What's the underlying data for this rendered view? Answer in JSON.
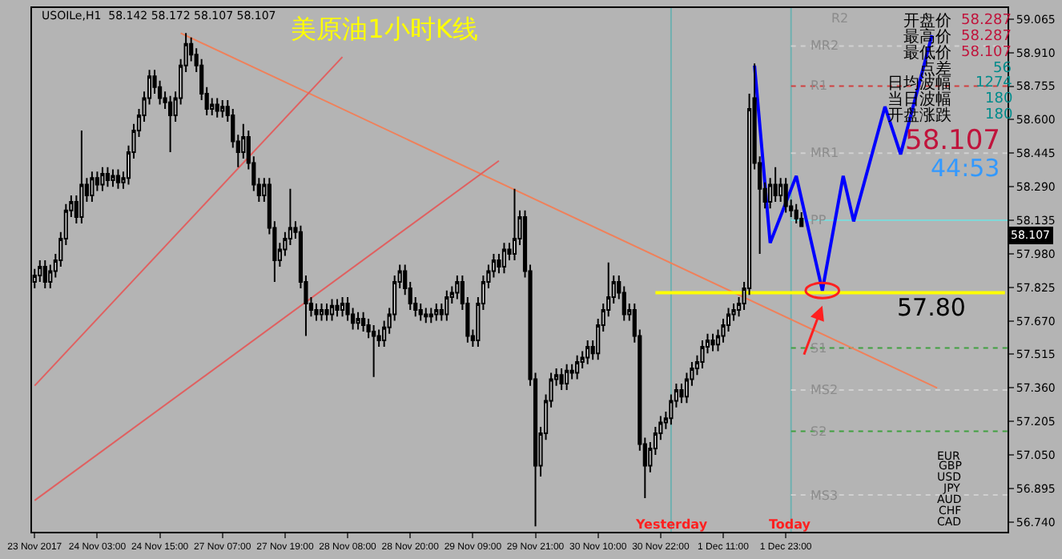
{
  "chart_data": {
    "type": "candlestick",
    "title": "美原油1小时K线",
    "categories": [
      "23 Nov 2017",
      null,
      null,
      null,
      null,
      null,
      null,
      null,
      null,
      null,
      null,
      null,
      "24 Nov 03:00",
      null,
      null,
      null,
      null,
      null,
      null,
      null,
      null,
      null,
      null,
      null,
      "24 Nov 15:00",
      null,
      null,
      null,
      null,
      null,
      null,
      null,
      null,
      null,
      null,
      null,
      "27 Nov 07:00",
      null,
      null,
      null,
      null,
      null,
      null,
      null,
      null,
      null,
      null,
      null,
      "27 Nov 19:00",
      null,
      null,
      null,
      null,
      null,
      null,
      null,
      null,
      null,
      null,
      null,
      "28 Nov 08:00",
      null,
      null,
      null,
      null,
      null,
      null,
      null,
      null,
      null,
      null,
      null,
      "28 Nov 20:00",
      null,
      null,
      null,
      null,
      null,
      null,
      null,
      null,
      null,
      null,
      null,
      "29 Nov 09:00",
      null,
      null,
      null,
      null,
      null,
      null,
      null,
      null,
      null,
      null,
      null,
      "29 Nov 21:00",
      null,
      null,
      null,
      null,
      null,
      null,
      null,
      null,
      null,
      null,
      null,
      "30 Nov 10:00",
      null,
      null,
      null,
      null,
      null,
      null,
      null,
      null,
      null,
      null,
      null,
      "30 Nov 22:00",
      null,
      null,
      null,
      null,
      null,
      null,
      null,
      null,
      null,
      null,
      null,
      "1 Dec 11:00",
      null,
      null,
      null,
      null,
      null,
      null,
      null,
      null,
      null,
      null,
      null,
      "1 Dec 23:00",
      null,
      null,
      null,
      null,
      null,
      null,
      null,
      null,
      null,
      null,
      null,
      null,
      null,
      null,
      null,
      null,
      null,
      null,
      null,
      null,
      null,
      null,
      null,
      null,
      null,
      null,
      null,
      null,
      null,
      null,
      null,
      null,
      null,
      null,
      null,
      null,
      null,
      null,
      null,
      null,
      null,
      null
    ],
    "ohlc": [
      [
        57.85,
        57.91,
        57.82,
        57.88
      ],
      [
        57.88,
        57.95,
        57.85,
        57.92
      ],
      [
        57.92,
        57.95,
        57.82,
        57.85
      ],
      [
        57.85,
        57.93,
        57.82,
        57.9
      ],
      [
        57.9,
        57.98,
        57.87,
        57.95
      ],
      [
        57.95,
        58.08,
        57.92,
        58.05
      ],
      [
        58.05,
        58.21,
        58.02,
        58.18
      ],
      [
        58.18,
        58.25,
        58.15,
        58.22
      ],
      [
        58.22,
        58.25,
        58.12,
        58.15
      ],
      [
        58.15,
        58.55,
        58.12,
        58.3
      ],
      [
        58.3,
        58.33,
        58.22,
        58.25
      ],
      [
        58.25,
        58.36,
        58.22,
        58.33
      ],
      [
        58.33,
        58.36,
        58.27,
        58.3
      ],
      [
        58.3,
        58.38,
        58.27,
        58.35
      ],
      [
        58.35,
        58.38,
        58.29,
        58.32
      ],
      [
        58.32,
        58.37,
        58.29,
        58.34
      ],
      [
        58.34,
        58.37,
        58.28,
        58.31
      ],
      [
        58.31,
        58.36,
        58.28,
        58.33
      ],
      [
        58.33,
        58.48,
        58.3,
        58.45
      ],
      [
        58.45,
        58.58,
        58.42,
        58.55
      ],
      [
        58.55,
        58.65,
        58.52,
        58.62
      ],
      [
        58.62,
        58.73,
        58.59,
        58.7
      ],
      [
        58.7,
        58.83,
        58.67,
        58.8
      ],
      [
        58.8,
        58.83,
        58.72,
        58.75
      ],
      [
        58.75,
        58.78,
        58.67,
        58.7
      ],
      [
        58.7,
        58.73,
        58.65,
        58.68
      ],
      [
        58.68,
        58.71,
        58.45,
        58.62
      ],
      [
        58.62,
        58.73,
        58.59,
        58.7
      ],
      [
        58.7,
        58.88,
        58.67,
        58.85
      ],
      [
        58.85,
        59.0,
        58.82,
        58.95
      ],
      [
        58.95,
        58.98,
        58.87,
        58.9
      ],
      [
        58.9,
        58.93,
        58.82,
        58.85
      ],
      [
        58.85,
        58.88,
        58.69,
        58.72
      ],
      [
        58.72,
        58.75,
        58.62,
        58.65
      ],
      [
        58.65,
        58.7,
        58.62,
        58.67
      ],
      [
        58.67,
        58.7,
        58.61,
        58.64
      ],
      [
        58.64,
        58.69,
        58.61,
        58.66
      ],
      [
        58.66,
        58.69,
        58.59,
        58.62
      ],
      [
        58.62,
        58.65,
        58.47,
        58.5
      ],
      [
        58.5,
        58.53,
        58.38,
        58.45
      ],
      [
        58.45,
        58.58,
        58.42,
        58.52
      ],
      [
        58.52,
        58.55,
        58.37,
        58.4
      ],
      [
        58.4,
        58.43,
        58.27,
        58.3
      ],
      [
        58.3,
        58.33,
        58.22,
        58.25
      ],
      [
        58.25,
        58.33,
        58.22,
        58.3
      ],
      [
        58.3,
        58.33,
        58.07,
        58.1
      ],
      [
        58.1,
        58.13,
        57.85,
        57.95
      ],
      [
        57.95,
        58.03,
        57.92,
        58.0
      ],
      [
        58.0,
        58.08,
        57.97,
        58.05
      ],
      [
        58.05,
        58.28,
        58.02,
        58.1
      ],
      [
        58.1,
        58.13,
        58.05,
        58.08
      ],
      [
        58.08,
        58.11,
        57.82,
        57.85
      ],
      [
        57.85,
        57.88,
        57.6,
        57.75
      ],
      [
        57.75,
        57.78,
        57.69,
        57.72
      ],
      [
        57.72,
        57.75,
        57.67,
        57.7
      ],
      [
        57.7,
        57.75,
        57.67,
        57.72
      ],
      [
        57.72,
        57.75,
        57.67,
        57.7
      ],
      [
        57.7,
        57.77,
        57.67,
        57.74
      ],
      [
        57.74,
        57.77,
        57.69,
        57.72
      ],
      [
        57.72,
        57.78,
        57.69,
        57.75
      ],
      [
        57.75,
        57.78,
        57.67,
        57.7
      ],
      [
        57.7,
        57.73,
        57.63,
        57.66
      ],
      [
        57.66,
        57.71,
        57.63,
        57.68
      ],
      [
        57.68,
        57.71,
        57.62,
        57.65
      ],
      [
        57.65,
        57.68,
        57.59,
        57.62
      ],
      [
        57.62,
        57.65,
        57.41,
        57.6
      ],
      [
        57.6,
        57.63,
        57.55,
        57.58
      ],
      [
        57.58,
        57.67,
        57.55,
        57.64
      ],
      [
        57.64,
        57.73,
        57.61,
        57.7
      ],
      [
        57.7,
        57.88,
        57.67,
        57.85
      ],
      [
        57.85,
        57.93,
        57.82,
        57.9
      ],
      [
        57.9,
        57.93,
        57.79,
        57.82
      ],
      [
        57.82,
        57.85,
        57.72,
        57.75
      ],
      [
        57.75,
        57.78,
        57.69,
        57.72
      ],
      [
        57.72,
        57.75,
        57.67,
        57.7
      ],
      [
        57.7,
        57.73,
        57.66,
        57.69
      ],
      [
        57.69,
        57.73,
        57.66,
        57.7
      ],
      [
        57.7,
        57.75,
        57.67,
        57.72
      ],
      [
        57.72,
        57.75,
        57.67,
        57.7
      ],
      [
        57.7,
        57.81,
        57.67,
        57.78
      ],
      [
        57.78,
        57.83,
        57.75,
        57.8
      ],
      [
        57.8,
        57.88,
        57.77,
        57.85
      ],
      [
        57.85,
        57.88,
        57.72,
        57.75
      ],
      [
        57.75,
        57.78,
        57.57,
        57.6
      ],
      [
        57.6,
        57.63,
        57.55,
        57.58
      ],
      [
        57.58,
        57.78,
        57.55,
        57.75
      ],
      [
        57.75,
        57.88,
        57.72,
        57.85
      ],
      [
        57.85,
        57.93,
        57.82,
        57.9
      ],
      [
        57.9,
        57.98,
        57.87,
        57.95
      ],
      [
        57.95,
        57.98,
        57.89,
        57.92
      ],
      [
        57.92,
        58.03,
        57.89,
        58.0
      ],
      [
        58.0,
        58.03,
        57.95,
        57.98
      ],
      [
        57.98,
        58.28,
        57.95,
        58.05
      ],
      [
        58.05,
        58.18,
        58.02,
        58.15
      ],
      [
        58.15,
        58.18,
        57.87,
        57.9
      ],
      [
        57.9,
        57.93,
        57.37,
        57.4
      ],
      [
        57.4,
        57.43,
        56.72,
        57.0
      ],
      [
        57.0,
        57.18,
        56.95,
        57.15
      ],
      [
        57.15,
        57.33,
        57.12,
        57.3
      ],
      [
        57.3,
        57.43,
        57.27,
        57.4
      ],
      [
        57.4,
        57.45,
        57.37,
        57.42
      ],
      [
        57.42,
        57.45,
        57.35,
        57.38
      ],
      [
        57.38,
        57.47,
        57.35,
        57.44
      ],
      [
        57.44,
        57.47,
        57.4,
        57.43
      ],
      [
        57.43,
        57.51,
        57.4,
        57.48
      ],
      [
        57.48,
        57.53,
        57.45,
        57.5
      ],
      [
        57.5,
        57.58,
        57.47,
        57.55
      ],
      [
        57.55,
        57.58,
        57.49,
        57.52
      ],
      [
        57.52,
        57.68,
        57.49,
        57.65
      ],
      [
        57.65,
        57.75,
        57.62,
        57.72
      ],
      [
        57.72,
        57.94,
        57.69,
        57.78
      ],
      [
        57.78,
        57.88,
        57.75,
        57.85
      ],
      [
        57.85,
        57.88,
        57.77,
        57.8
      ],
      [
        57.8,
        57.83,
        57.67,
        57.7
      ],
      [
        57.7,
        57.75,
        57.67,
        57.72
      ],
      [
        57.72,
        57.75,
        57.57,
        57.6
      ],
      [
        57.6,
        57.63,
        57.07,
        57.1
      ],
      [
        57.1,
        57.13,
        56.85,
        57.0
      ],
      [
        57.0,
        57.11,
        56.97,
        57.08
      ],
      [
        57.08,
        57.18,
        57.05,
        57.15
      ],
      [
        57.15,
        57.23,
        57.12,
        57.2
      ],
      [
        57.2,
        57.25,
        57.17,
        57.22
      ],
      [
        57.22,
        57.33,
        57.19,
        57.3
      ],
      [
        57.3,
        57.38,
        57.27,
        57.35
      ],
      [
        57.35,
        57.38,
        57.29,
        57.32
      ],
      [
        57.32,
        57.43,
        57.29,
        57.4
      ],
      [
        57.4,
        57.48,
        57.37,
        57.45
      ],
      [
        57.45,
        57.51,
        57.42,
        57.48
      ],
      [
        57.48,
        57.58,
        57.45,
        57.55
      ],
      [
        57.55,
        57.61,
        57.52,
        57.58
      ],
      [
        57.58,
        57.61,
        57.53,
        57.56
      ],
      [
        57.56,
        57.63,
        57.53,
        57.6
      ],
      [
        57.6,
        57.68,
        57.57,
        57.65
      ],
      [
        57.65,
        57.73,
        57.62,
        57.7
      ],
      [
        57.7,
        57.75,
        57.67,
        57.72
      ],
      [
        57.72,
        57.78,
        57.69,
        57.75
      ],
      [
        57.75,
        57.85,
        57.72,
        57.82
      ],
      [
        57.82,
        58.72,
        57.79,
        58.65
      ],
      [
        58.7,
        58.86,
        58.37,
        58.4
      ],
      [
        58.4,
        58.43,
        57.98,
        58.28
      ],
      [
        58.28,
        58.31,
        58.19,
        58.22
      ],
      [
        58.22,
        58.33,
        58.19,
        58.3
      ],
      [
        58.3,
        58.38,
        58.22,
        58.25
      ],
      [
        58.25,
        58.33,
        58.22,
        58.3
      ],
      [
        58.3,
        58.33,
        58.17,
        58.2
      ],
      [
        58.2,
        58.23,
        58.15,
        58.18
      ],
      [
        58.18,
        58.21,
        58.12,
        58.142
      ],
      [
        58.142,
        58.172,
        58.107,
        58.107
      ],
      null,
      null,
      null,
      null,
      null,
      null,
      null,
      null,
      null,
      null,
      null,
      null,
      null,
      null,
      null,
      null,
      null,
      null,
      null,
      null,
      null,
      null,
      null,
      null,
      null,
      null,
      null,
      null,
      null,
      null,
      null,
      null,
      null,
      null,
      null,
      null,
      null,
      null,
      null
    ],
    "series": [
      {
        "type": "line",
        "color": "#f0805a",
        "values": [
          null,
          null,
          null,
          null,
          null,
          null,
          null,
          null,
          null,
          null,
          null,
          null,
          null,
          null,
          null,
          null,
          null,
          null,
          null,
          null,
          null,
          null,
          null,
          null,
          null,
          null,
          null,
          null,
          59.0,
          null,
          null,
          null,
          null,
          null,
          null,
          null,
          null,
          null,
          null,
          null,
          null,
          null,
          null,
          null,
          null,
          null,
          null,
          null,
          null,
          null,
          null,
          null,
          null,
          null,
          null,
          null,
          null,
          null,
          null,
          null,
          null,
          null,
          null,
          null,
          null,
          null,
          null,
          null,
          null,
          null,
          null,
          null,
          null,
          null,
          null,
          null,
          null,
          null,
          null,
          null,
          null,
          null,
          null,
          null,
          null,
          null,
          null,
          null,
          null,
          null,
          null,
          null,
          null,
          null,
          null,
          null,
          null,
          null,
          null,
          null,
          null,
          null,
          null,
          null,
          null,
          null,
          null,
          null,
          null,
          null,
          null,
          null,
          null,
          null,
          null,
          null,
          null,
          null,
          null,
          null,
          null,
          null,
          null,
          null,
          null,
          null,
          null,
          null,
          null,
          null,
          null,
          null,
          null,
          null,
          null,
          null,
          null,
          null,
          null,
          null,
          null,
          null,
          null,
          null,
          null,
          null,
          null,
          null,
          null,
          null,
          null,
          null,
          null,
          null,
          null,
          null,
          null,
          null,
          null,
          null,
          null,
          null,
          null,
          null,
          null,
          null,
          null,
          null,
          null,
          null,
          null,
          null,
          null,
          57.36,
          null,
          null,
          null,
          null,
          null,
          null,
          null,
          null,
          null,
          null,
          null,
          null,
          null
        ]
      },
      {
        "type": "line",
        "color": "#e06060",
        "values": [
          57.37,
          null,
          null,
          null,
          null,
          null,
          null,
          null,
          null,
          null,
          null,
          null,
          null,
          null,
          null,
          null,
          null,
          null,
          null,
          null,
          null,
          null,
          null,
          null,
          null,
          null,
          null,
          null,
          null,
          null,
          null,
          null,
          null,
          null,
          null,
          null,
          null,
          null,
          null,
          null,
          null,
          null,
          null,
          null,
          null,
          null,
          null,
          null,
          null,
          null,
          null,
          null,
          null,
          null,
          null,
          null,
          null,
          null,
          null,
          58.89,
          null,
          null,
          null,
          null,
          null,
          null,
          null,
          null,
          null,
          null,
          null,
          null,
          null,
          null,
          null,
          null,
          null,
          null,
          null,
          null,
          null,
          null,
          null,
          null,
          null,
          null,
          null,
          null,
          null,
          null,
          null,
          null,
          null,
          null,
          null,
          null,
          null,
          null,
          null,
          null,
          null,
          null,
          null,
          null,
          null,
          null,
          null,
          null,
          null,
          null,
          null,
          null,
          null,
          null,
          null,
          null,
          null,
          null,
          null,
          null,
          null,
          null,
          null,
          null,
          null,
          null,
          null,
          null,
          null,
          null,
          null,
          null,
          null,
          null,
          null,
          null,
          null,
          null,
          null,
          null,
          null,
          null,
          null,
          null,
          null,
          null,
          null,
          null,
          null,
          null,
          null,
          null,
          null,
          null,
          null,
          null,
          null,
          null,
          null,
          null,
          null,
          null,
          null,
          null,
          null,
          null,
          null,
          null,
          null,
          null,
          null,
          null,
          null,
          null,
          null,
          null,
          null,
          null,
          null,
          null,
          null,
          null,
          null,
          null,
          null,
          null,
          null
        ]
      },
      {
        "type": "line",
        "color": "#e06060",
        "values": [
          56.84,
          null,
          null,
          null,
          null,
          null,
          null,
          null,
          null,
          null,
          null,
          null,
          null,
          null,
          null,
          null,
          null,
          null,
          null,
          null,
          null,
          null,
          null,
          null,
          null,
          null,
          null,
          null,
          null,
          null,
          null,
          null,
          null,
          null,
          null,
          null,
          null,
          null,
          null,
          null,
          null,
          null,
          null,
          null,
          null,
          null,
          null,
          null,
          null,
          null,
          null,
          null,
          null,
          null,
          null,
          null,
          null,
          null,
          null,
          null,
          null,
          null,
          null,
          null,
          null,
          null,
          null,
          null,
          null,
          null,
          null,
          null,
          null,
          null,
          null,
          null,
          null,
          null,
          null,
          null,
          null,
          null,
          null,
          null,
          null,
          null,
          null,
          null,
          null,
          58.41,
          null,
          null,
          null,
          null,
          null,
          null,
          null,
          null,
          null,
          null,
          null,
          null,
          null,
          null,
          null,
          null,
          null,
          null,
          null,
          null,
          null,
          null,
          null,
          null,
          null,
          null,
          null,
          null,
          null,
          null,
          null,
          null,
          null,
          null,
          null,
          null,
          null,
          null,
          null,
          null,
          null,
          null,
          null,
          null,
          null,
          null,
          null,
          null,
          null,
          null,
          null,
          null,
          null,
          null,
          null,
          null,
          null,
          null,
          null,
          null,
          null,
          null,
          null,
          null,
          null,
          null,
          null,
          null,
          null,
          null,
          null,
          null,
          null,
          null,
          null,
          null,
          null,
          null,
          null,
          null,
          null,
          null,
          null,
          null,
          null,
          null,
          null,
          null,
          null,
          null,
          null,
          null,
          null,
          null,
          null,
          null,
          null
        ]
      },
      {
        "type": "line",
        "color": "#ffff00",
        "values": [
          null,
          null,
          null,
          null,
          null,
          null,
          null,
          null,
          null,
          null,
          null,
          null,
          null,
          null,
          null,
          null,
          null,
          null,
          null,
          null,
          null,
          null,
          null,
          null,
          null,
          null,
          null,
          null,
          null,
          null,
          null,
          null,
          null,
          null,
          null,
          null,
          null,
          null,
          null,
          null,
          null,
          null,
          null,
          null,
          null,
          null,
          null,
          null,
          null,
          null,
          null,
          null,
          null,
          null,
          null,
          null,
          null,
          null,
          null,
          null,
          null,
          null,
          null,
          null,
          null,
          null,
          null,
          null,
          null,
          null,
          null,
          null,
          null,
          null,
          null,
          null,
          null,
          null,
          null,
          null,
          null,
          null,
          null,
          null,
          null,
          null,
          null,
          null,
          null,
          null,
          null,
          null,
          null,
          null,
          null,
          null,
          null,
          null,
          null,
          null,
          null,
          null,
          null,
          null,
          null,
          null,
          null,
          null,
          null,
          null,
          null,
          null,
          null,
          null,
          null,
          null,
          null,
          null,
          null,
          57.8,
          null,
          null,
          null,
          null,
          null,
          null,
          null,
          null,
          null,
          null,
          null,
          null,
          null,
          null,
          null,
          null,
          null,
          null,
          null,
          null,
          null,
          null,
          null,
          null,
          null,
          null,
          null,
          null,
          null,
          null,
          null,
          null,
          null,
          null,
          null,
          null,
          null,
          null,
          null,
          null,
          null,
          null,
          null,
          null,
          null,
          null,
          null,
          null,
          null,
          null,
          null,
          null,
          null,
          null,
          null,
          null,
          null,
          null,
          null,
          null,
          null,
          null,
          null,
          null,
          null,
          null,
          57.8
        ]
      },
      {
        "type": "line",
        "color": "#0000ff",
        "values": [
          null,
          null,
          null,
          null,
          null,
          null,
          null,
          null,
          null,
          null,
          null,
          null,
          null,
          null,
          null,
          null,
          null,
          null,
          null,
          null,
          null,
          null,
          null,
          null,
          null,
          null,
          null,
          null,
          null,
          null,
          null,
          null,
          null,
          null,
          null,
          null,
          null,
          null,
          null,
          null,
          null,
          null,
          null,
          null,
          null,
          null,
          null,
          null,
          null,
          null,
          null,
          null,
          null,
          null,
          null,
          null,
          null,
          null,
          null,
          null,
          null,
          null,
          null,
          null,
          null,
          null,
          null,
          null,
          null,
          null,
          null,
          null,
          null,
          null,
          null,
          null,
          null,
          null,
          null,
          null,
          null,
          null,
          null,
          null,
          null,
          null,
          null,
          null,
          null,
          null,
          null,
          null,
          null,
          null,
          null,
          null,
          null,
          null,
          null,
          null,
          null,
          null,
          null,
          null,
          null,
          null,
          null,
          null,
          null,
          null,
          null,
          null,
          null,
          null,
          null,
          null,
          null,
          null,
          null,
          null,
          null,
          null,
          null,
          null,
          null,
          null,
          null,
          null,
          null,
          null,
          null,
          null,
          null,
          null,
          null,
          null,
          null,
          null,
          58.85,
          null,
          null,
          58.03,
          null,
          null,
          null,
          null,
          58.34,
          null,
          null,
          null,
          null,
          57.81,
          null,
          null,
          null,
          58.34,
          null,
          58.13,
          null,
          null,
          null,
          null,
          null,
          58.66,
          null,
          null,
          58.44,
          null,
          null,
          null,
          null,
          null,
          58.99,
          null,
          null,
          null,
          null,
          null,
          null,
          null,
          null,
          null,
          null,
          null,
          null,
          null,
          null
        ]
      }
    ],
    "ylim": [
      56.695,
      59.116
    ],
    "yticks": [
      {
        "value": 59.065,
        "label": "59.065"
      },
      {
        "value": 58.91,
        "label": "58.910"
      },
      {
        "value": 58.755,
        "label": "58.755"
      },
      {
        "value": 58.6,
        "label": "58.600"
      },
      {
        "value": 58.445,
        "label": "58.445"
      },
      {
        "value": 58.29,
        "label": "58.290"
      },
      {
        "value": 58.135,
        "label": "58.135"
      },
      {
        "value": 57.98,
        "label": "57.980"
      },
      {
        "value": 57.825,
        "label": "57.825"
      },
      {
        "value": 57.67,
        "label": "57.670"
      },
      {
        "value": 57.515,
        "label": "57.515"
      },
      {
        "value": 57.36,
        "label": "57.360"
      },
      {
        "value": 57.205,
        "label": "57.205"
      },
      {
        "value": 57.05,
        "label": "57.050"
      },
      {
        "value": 56.895,
        "label": "56.895"
      },
      {
        "value": 56.74,
        "label": "56.740"
      }
    ],
    "ref_lines": [
      {
        "axis": "y",
        "value": 58.94,
        "label": "MR2",
        "color": "#d0d0d0",
        "line_style": "dotted"
      },
      {
        "axis": "y",
        "value": 58.755,
        "label": "R1",
        "color": "#d04040",
        "line_style": "dotted"
      },
      {
        "axis": "y",
        "value": 58.445,
        "label": "MR1",
        "color": "#d0d0d0",
        "line_style": "dotted"
      },
      {
        "axis": "y",
        "value": 58.135,
        "label": "PP",
        "color": "#80d8d8",
        "line_style": "solid"
      },
      {
        "axis": "y",
        "value": 57.545,
        "label": "S1",
        "color": "#40a040",
        "line_style": "dotted"
      },
      {
        "axis": "y",
        "value": 57.35,
        "label": "MS2",
        "color": "#d0d0d0",
        "line_style": "dotted"
      },
      {
        "axis": "y",
        "value": 57.16,
        "label": "S2",
        "color": "#40a040",
        "line_style": "dotted"
      },
      {
        "axis": "y",
        "value": 56.865,
        "label": "MS3",
        "color": "#d0d0d0",
        "line_style": "dotted"
      }
    ],
    "annotations": [
      "USOILe,H1  58.142 58.172 58.107 58.107",
      "R2",
      "开盘价",
      "最高价",
      "最低价",
      "点差",
      "日均波幅",
      "当日波幅",
      "开盘涨跌",
      "58.287",
      "58.287",
      "58.107",
      "56",
      "1274",
      "180",
      "180",
      "58.107",
      "44:53",
      "57.80",
      "58.107",
      "EUR",
      "GBP",
      "USD",
      "JPY",
      "AUD",
      "CHF",
      "CAD",
      "Yesterday",
      "Today"
    ]
  }
}
